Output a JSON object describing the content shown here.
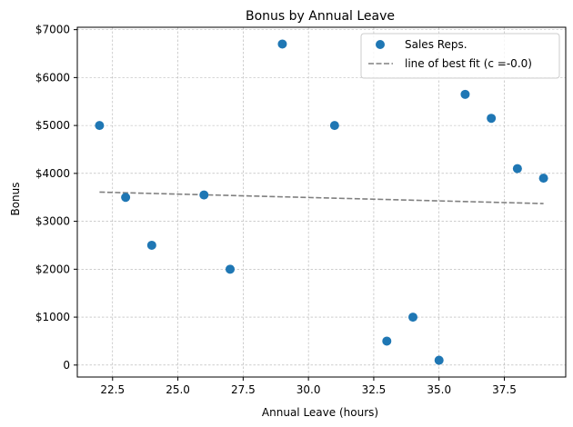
{
  "chart_data": {
    "type": "scatter",
    "title": "Bonus by Annual Leave",
    "xlabel": "Annual Leave (hours)",
    "ylabel": "Bonus",
    "xlim": [
      21.15,
      39.85
    ],
    "ylim": [
      -250,
      7050
    ],
    "xticks": [
      22.5,
      25.0,
      27.5,
      30.0,
      32.5,
      35.0,
      37.5
    ],
    "xtick_labels": [
      "22.5",
      "25.0",
      "27.5",
      "30.0",
      "32.5",
      "35.0",
      "37.5"
    ],
    "yticks": [
      0,
      1000,
      2000,
      3000,
      4000,
      5000,
      6000,
      7000
    ],
    "ytick_labels": [
      "0",
      "$1000",
      "$2000",
      "$3000",
      "$4000",
      "$5000",
      "$6000",
      "$7000"
    ],
    "grid": true,
    "legend_position": "top-right",
    "series": [
      {
        "name": "Sales Reps.",
        "kind": "scatter",
        "color": "#1f77b4",
        "x": [
          22,
          23,
          24,
          26,
          27,
          29,
          31,
          33,
          34,
          35,
          36,
          37,
          38,
          39
        ],
        "y": [
          5000,
          3500,
          2500,
          3550,
          2000,
          6700,
          5000,
          500,
          1000,
          100,
          5650,
          5150,
          4100,
          3900
        ]
      },
      {
        "name": "line of best fit (c =-0.0)",
        "kind": "line",
        "style": "dashed",
        "color": "#808080",
        "x": [
          22,
          39
        ],
        "y": [
          3610,
          3370
        ]
      }
    ]
  }
}
